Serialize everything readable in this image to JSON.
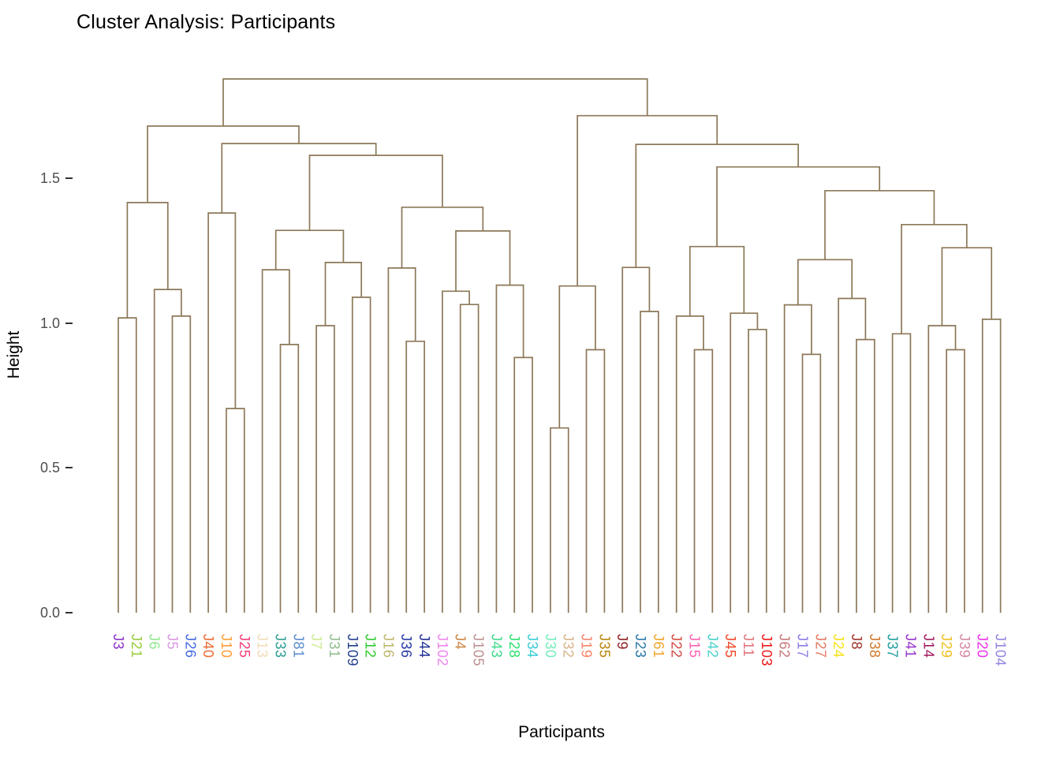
{
  "chart_data": {
    "type": "dendrogram",
    "title": "Cluster Analysis: Participants",
    "xlabel": "Participants",
    "ylabel": "Height",
    "grid": "off",
    "legend": "none",
    "line_color": "#8C7858",
    "axis_text_color": "#4D4D4D",
    "title_color": "#000000",
    "ylim": [
      0,
      1.9
    ],
    "yticks": [
      {
        "label": "0.0",
        "value": 0.0
      },
      {
        "label": "0.5",
        "value": 0.5
      },
      {
        "label": "1.0",
        "value": 1.0
      },
      {
        "label": "1.5",
        "value": 1.5
      }
    ],
    "leaves": [
      {
        "label": "J3",
        "color": "#8B32C8"
      },
      {
        "label": "J21",
        "color": "#96CC3C"
      },
      {
        "label": "J6",
        "color": "#90E890"
      },
      {
        "label": "J5",
        "color": "#D898E0"
      },
      {
        "label": "J26",
        "color": "#4169E1"
      },
      {
        "label": "J40",
        "color": "#ED6A32"
      },
      {
        "label": "J10",
        "color": "#FF9C33"
      },
      {
        "label": "J25",
        "color": "#F23C78"
      },
      {
        "label": "J13",
        "color": "#F0DCB8"
      },
      {
        "label": "J33",
        "color": "#2E9E96"
      },
      {
        "label": "J81",
        "color": "#5A8CD0"
      },
      {
        "label": "J7",
        "color": "#CDEB94"
      },
      {
        "label": "J31",
        "color": "#8FBC8F"
      },
      {
        "label": "J109",
        "color": "#24418E"
      },
      {
        "label": "J12",
        "color": "#2ECC2E"
      },
      {
        "label": "J16",
        "color": "#BDB76B"
      },
      {
        "label": "J36",
        "color": "#2638A8"
      },
      {
        "label": "J44",
        "color": "#1F2C96"
      },
      {
        "label": "J102",
        "color": "#EE86EE"
      },
      {
        "label": "J4",
        "color": "#CD8540"
      },
      {
        "label": "J105",
        "color": "#BC8F8F"
      },
      {
        "label": "J43",
        "color": "#3FD98C"
      },
      {
        "label": "J28",
        "color": "#2EE06E"
      },
      {
        "label": "J34",
        "color": "#38CCD4"
      },
      {
        "label": "J30",
        "color": "#72EDBB"
      },
      {
        "label": "J32",
        "color": "#D9B48A"
      },
      {
        "label": "J19",
        "color": "#FA8268"
      },
      {
        "label": "J35",
        "color": "#B8860B"
      },
      {
        "label": "J9",
        "color": "#8E1F1F"
      },
      {
        "label": "J23",
        "color": "#2878A8"
      },
      {
        "label": "J61",
        "color": "#F2A52A"
      },
      {
        "label": "J22",
        "color": "#D44A42"
      },
      {
        "label": "J15",
        "color": "#FF5FB0"
      },
      {
        "label": "J42",
        "color": "#48D1CC"
      },
      {
        "label": "J45",
        "color": "#F04828"
      },
      {
        "label": "J11",
        "color": "#E2737B"
      },
      {
        "label": "J103",
        "color": "#F01818"
      },
      {
        "label": "J62",
        "color": "#C87878"
      },
      {
        "label": "J17",
        "color": "#8A7BE8"
      },
      {
        "label": "J27",
        "color": "#E87862"
      },
      {
        "label": "J24",
        "color": "#F5E216"
      },
      {
        "label": "J8",
        "color": "#9E3028"
      },
      {
        "label": "J38",
        "color": "#D2772A"
      },
      {
        "label": "J37",
        "color": "#1F9E9E"
      },
      {
        "label": "J41",
        "color": "#9632CC"
      },
      {
        "label": "J14",
        "color": "#A01A5E"
      },
      {
        "label": "J29",
        "color": "#EEC01F"
      },
      {
        "label": "J39",
        "color": "#D487A0"
      },
      {
        "label": "J20",
        "color": "#EE2EE8"
      },
      {
        "label": "J104",
        "color": "#8F85E0"
      }
    ],
    "tree": {
      "h": 1.843,
      "c": [
        {
          "h": 1.68,
          "c": [
            {
              "h": 1.416,
              "c": [
                {
                  "h": 1.018,
                  "c": [
                    "J3",
                    "J21"
                  ]
                },
                {
                  "h": 1.116,
                  "c": [
                    "J6",
                    {
                      "h": 1.024,
                      "c": [
                        "J5",
                        "J26"
                      ]
                    }
                  ]
                }
              ]
            },
            {
              "h": 1.62,
              "c": [
                {
                  "h": 1.38,
                  "c": [
                    "J40",
                    {
                      "h": 0.705,
                      "c": [
                        "J10",
                        "J25"
                      ]
                    }
                  ]
                },
                {
                  "h": 1.579,
                  "c": [
                    {
                      "h": 1.32,
                      "c": [
                        {
                          "h": 1.184,
                          "c": [
                            "J13",
                            {
                              "h": 0.926,
                              "c": [
                                "J33",
                                "J81"
                              ]
                            }
                          ]
                        },
                        {
                          "h": 1.209,
                          "c": [
                            {
                              "h": 0.991,
                              "c": [
                                "J7",
                                "J31"
                              ]
                            },
                            {
                              "h": 1.089,
                              "c": [
                                "J109",
                                "J12"
                              ]
                            }
                          ]
                        }
                      ]
                    },
                    {
                      "h": 1.4,
                      "c": [
                        {
                          "h": 1.19,
                          "c": [
                            "J16",
                            {
                              "h": 0.937,
                              "c": [
                                "J36",
                                "J44"
                              ]
                            }
                          ]
                        },
                        {
                          "h": 1.318,
                          "c": [
                            {
                              "h": 1.11,
                              "c": [
                                "J102",
                                {
                                  "h": 1.064,
                                  "c": [
                                    "J4",
                                    "J105"
                                  ]
                                }
                              ]
                            },
                            {
                              "h": 1.131,
                              "c": [
                                "J43",
                                {
                                  "h": 0.881,
                                  "c": [
                                    "J28",
                                    "J34"
                                  ]
                                }
                              ]
                            }
                          ]
                        }
                      ]
                    }
                  ]
                }
              ]
            }
          ]
        },
        {
          "h": 1.716,
          "c": [
            {
              "h": 1.128,
              "c": [
                {
                  "h": 0.638,
                  "c": [
                    "J30",
                    "J32"
                  ]
                },
                {
                  "h": 0.908,
                  "c": [
                    "J19",
                    "J35"
                  ]
                }
              ]
            },
            {
              "h": 1.617,
              "c": [
                {
                  "h": 1.192,
                  "c": [
                    "J9",
                    {
                      "h": 1.04,
                      "c": [
                        "J23",
                        "J61"
                      ]
                    }
                  ]
                },
                {
                  "h": 1.539,
                  "c": [
                    {
                      "h": 1.264,
                      "c": [
                        {
                          "h": 1.024,
                          "c": [
                            "J22",
                            {
                              "h": 0.908,
                              "c": [
                                "J15",
                                "J42"
                              ]
                            }
                          ]
                        },
                        {
                          "h": 1.034,
                          "c": [
                            "J45",
                            {
                              "h": 0.978,
                              "c": [
                                "J11",
                                "J103"
                              ]
                            }
                          ]
                        }
                      ]
                    },
                    {
                      "h": 1.457,
                      "c": [
                        {
                          "h": 1.219,
                          "c": [
                            {
                              "h": 1.063,
                              "c": [
                                "J62",
                                {
                                  "h": 0.892,
                                  "c": [
                                    "J17",
                                    "J27"
                                  ]
                                }
                              ]
                            },
                            {
                              "h": 1.085,
                              "c": [
                                "J24",
                                {
                                  "h": 0.943,
                                  "c": [
                                    "J8",
                                    "J38"
                                  ]
                                }
                              ]
                            }
                          ]
                        },
                        {
                          "h": 1.34,
                          "c": [
                            {
                              "h": 0.963,
                              "c": [
                                "J37",
                                "J41"
                              ]
                            },
                            {
                              "h": 1.26,
                              "c": [
                                {
                                  "h": 0.991,
                                  "c": [
                                    "J14",
                                    {
                                      "h": 0.908,
                                      "c": [
                                        "J29",
                                        "J39"
                                      ]
                                    }
                                  ]
                                },
                                {
                                  "h": 1.013,
                                  "c": [
                                    "J20",
                                    "J104"
                                  ]
                                }
                              ]
                            }
                          ]
                        }
                      ]
                    }
                  ]
                }
              ]
            }
          ]
        }
      ]
    }
  }
}
